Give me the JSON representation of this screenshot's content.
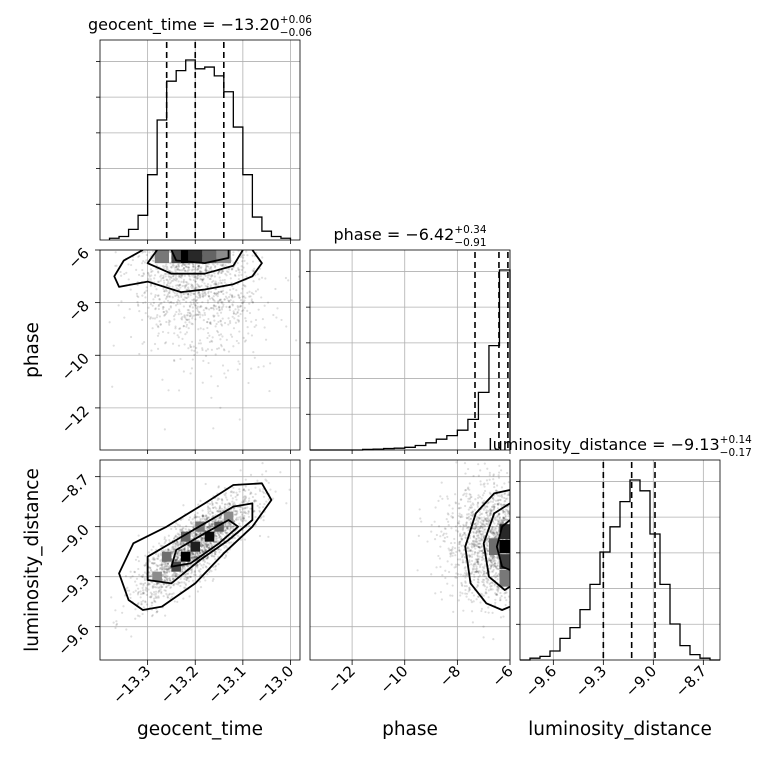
{
  "chart_data": {
    "type": "corner",
    "grid": true,
    "parameters": [
      {
        "name": "geocent_time",
        "label": "geocent_time",
        "range": [
          -13.4,
          -12.98
        ],
        "ticks": [
          -13.3,
          -13.2,
          -13.1,
          -13.0
        ],
        "tick_labels": [
          "−13.3",
          "−13.2",
          "−13.1",
          "−13.0"
        ],
        "median": -13.2,
        "minus": 0.06,
        "plus": 0.06,
        "title": {
          "name": "geocent_time",
          "value": "−13.20",
          "plus": "+0.06",
          "minus": "−0.06"
        },
        "quantiles": [
          -13.26,
          -13.2,
          -13.14
        ],
        "hist": {
          "edges": [
            -13.38,
            -13.36,
            -13.34,
            -13.32,
            -13.3,
            -13.28,
            -13.26,
            -13.24,
            -13.22,
            -13.2,
            -13.18,
            -13.16,
            -13.14,
            -13.12,
            -13.1,
            -13.08,
            -13.06,
            -13.04,
            -13.02,
            -13.0
          ],
          "counts": [
            1,
            2,
            6,
            14,
            37,
            68,
            90,
            96,
            102,
            97,
            98,
            93,
            84,
            64,
            37,
            13,
            5,
            2,
            1
          ]
        }
      },
      {
        "name": "phase",
        "label": "phase",
        "range": [
          -13.6,
          -6.0
        ],
        "ticks": [
          -12,
          -10,
          -8,
          -6
        ],
        "tick_labels": [
          "−12",
          "−10",
          "−8",
          "−6"
        ],
        "median": -6.42,
        "minus": 0.91,
        "plus": 0.34,
        "title": {
          "name": "phase",
          "value": "−6.42",
          "plus": "+0.34",
          "minus": "−0.91"
        },
        "quantiles": [
          -7.33,
          -6.42,
          -6.08
        ],
        "hist": {
          "edges": [
            -13.6,
            -13.2,
            -12.8,
            -12.4,
            -12.0,
            -11.6,
            -11.2,
            -10.8,
            -10.4,
            -10.0,
            -9.6,
            -9.2,
            -8.8,
            -8.4,
            -8.0,
            -7.6,
            -7.2,
            -6.8,
            -6.4,
            -6.0
          ],
          "counts": [
            0,
            0,
            0,
            0,
            0,
            0.3,
            0.5,
            0.8,
            1,
            1.5,
            2.5,
            4,
            6,
            8,
            11,
            17,
            32,
            58,
            100
          ]
        }
      },
      {
        "name": "luminosity_distance",
        "label": "luminosity_distance",
        "range": [
          -9.8,
          -8.6
        ],
        "ticks": [
          -9.6,
          -9.3,
          -9.0,
          -8.7
        ],
        "tick_labels": [
          "−9.6",
          "−9.3",
          "−9.0",
          "−8.7"
        ],
        "median": -9.13,
        "minus": 0.17,
        "plus": 0.14,
        "title": {
          "name": "luminosity_distance",
          "value": "−9.13",
          "plus": "+0.14",
          "minus": "−0.17"
        },
        "quantiles": [
          -9.3,
          -9.13,
          -8.99
        ],
        "hist": {
          "edges": [
            -9.8,
            -9.74,
            -9.68,
            -9.62,
            -9.56,
            -9.5,
            -9.44,
            -9.38,
            -9.32,
            -9.26,
            -9.2,
            -9.14,
            -9.08,
            -9.02,
            -8.96,
            -8.9,
            -8.84,
            -8.78,
            -8.72,
            -8.66,
            -8.6
          ],
          "counts": [
            0,
            1,
            2,
            5,
            12,
            18,
            28,
            42,
            60,
            74,
            88,
            100,
            94,
            70,
            42,
            20,
            8,
            3,
            1,
            0
          ]
        }
      }
    ],
    "pairs": [
      {
        "x": "geocent_time",
        "y": "phase",
        "mean": [
          -13.21,
          -7.0
        ],
        "sd": [
          0.06,
          1.0
        ],
        "corr": 0.0,
        "scatter_points": 1200,
        "density_squares": [
          {
            "x": -13.22,
            "y": -6.25,
            "w": 0.03,
            "h": 0.5,
            "shade": 0.0
          },
          {
            "x": -13.2,
            "y": -6.25,
            "w": 0.03,
            "h": 0.5,
            "shade": 0.2
          },
          {
            "x": -13.24,
            "y": -6.25,
            "w": 0.02,
            "h": 0.5,
            "shade": 0.35
          },
          {
            "x": -13.17,
            "y": -6.25,
            "w": 0.03,
            "h": 0.5,
            "shade": 0.5
          },
          {
            "x": -13.27,
            "y": -6.25,
            "w": 0.03,
            "h": 0.5,
            "shade": 0.6
          },
          {
            "x": -13.14,
            "y": -6.25,
            "w": 0.03,
            "h": 0.5,
            "shade": 0.7
          }
        ],
        "contours": [
          [
            [
              -13.31,
              -6.0
            ],
            [
              -13.35,
              -6.4
            ],
            [
              -13.37,
              -7.0
            ],
            [
              -13.36,
              -7.4
            ],
            [
              -13.3,
              -7.2
            ],
            [
              -13.23,
              -7.6
            ],
            [
              -13.18,
              -7.5
            ],
            [
              -13.12,
              -7.3
            ],
            [
              -13.08,
              -7.0
            ],
            [
              -13.06,
              -6.5
            ],
            [
              -13.08,
              -6.0
            ]
          ],
          [
            [
              -13.28,
              -6.0
            ],
            [
              -13.3,
              -6.5
            ],
            [
              -13.25,
              -6.9
            ],
            [
              -13.18,
              -6.9
            ],
            [
              -13.12,
              -6.6
            ],
            [
              -13.1,
              -6.0
            ]
          ],
          [
            [
              -13.25,
              -6.0
            ],
            [
              -13.24,
              -6.4
            ],
            [
              -13.18,
              -6.5
            ],
            [
              -13.13,
              -6.3
            ],
            [
              -13.13,
              -6.0
            ]
          ]
        ]
      },
      {
        "x": "geocent_time",
        "y": "luminosity_distance",
        "mean": [
          -13.2,
          -9.12
        ],
        "sd": [
          0.06,
          0.16
        ],
        "corr": 0.82,
        "scatter_points": 2000,
        "density_squares": [
          {
            "x": -13.22,
            "y": -9.18,
            "w": 0.02,
            "h": 0.06,
            "shade": 0.0
          },
          {
            "x": -13.2,
            "y": -9.12,
            "w": 0.02,
            "h": 0.06,
            "shade": 0.15
          },
          {
            "x": -13.17,
            "y": -9.06,
            "w": 0.02,
            "h": 0.06,
            "shade": 0.05
          },
          {
            "x": -13.24,
            "y": -9.24,
            "w": 0.02,
            "h": 0.06,
            "shade": 0.35
          },
          {
            "x": -13.15,
            "y": -9.0,
            "w": 0.02,
            "h": 0.06,
            "shade": 0.45
          },
          {
            "x": -13.26,
            "y": -9.18,
            "w": 0.02,
            "h": 0.06,
            "shade": 0.55
          },
          {
            "x": -13.19,
            "y": -9.0,
            "w": 0.02,
            "h": 0.06,
            "shade": 0.6
          },
          {
            "x": -13.22,
            "y": -9.06,
            "w": 0.02,
            "h": 0.06,
            "shade": 0.5
          },
          {
            "x": -13.13,
            "y": -8.94,
            "w": 0.02,
            "h": 0.06,
            "shade": 0.7
          },
          {
            "x": -13.28,
            "y": -9.3,
            "w": 0.02,
            "h": 0.06,
            "shade": 0.7
          }
        ],
        "contours": [
          [
            [
              -13.34,
              -9.44
            ],
            [
              -13.36,
              -9.28
            ],
            [
              -13.33,
              -9.1
            ],
            [
              -13.26,
              -9.0
            ],
            [
              -13.18,
              -8.86
            ],
            [
              -13.12,
              -8.75
            ],
            [
              -13.06,
              -8.74
            ],
            [
              -13.04,
              -8.84
            ],
            [
              -13.08,
              -9.0
            ],
            [
              -13.14,
              -9.16
            ],
            [
              -13.2,
              -9.34
            ],
            [
              -13.27,
              -9.48
            ],
            [
              -13.31,
              -9.5
            ]
          ],
          [
            [
              -13.3,
              -9.32
            ],
            [
              -13.3,
              -9.18
            ],
            [
              -13.24,
              -9.08
            ],
            [
              -13.18,
              -8.98
            ],
            [
              -13.12,
              -8.88
            ],
            [
              -13.08,
              -8.86
            ],
            [
              -13.08,
              -8.96
            ],
            [
              -13.13,
              -9.08
            ],
            [
              -13.19,
              -9.2
            ],
            [
              -13.25,
              -9.34
            ]
          ],
          [
            [
              -13.25,
              -9.24
            ],
            [
              -13.24,
              -9.14
            ],
            [
              -13.18,
              -9.04
            ],
            [
              -13.13,
              -8.96
            ],
            [
              -13.11,
              -9.0
            ],
            [
              -13.15,
              -9.1
            ],
            [
              -13.21,
              -9.22
            ]
          ]
        ]
      },
      {
        "x": "phase",
        "y": "luminosity_distance",
        "mean": [
          -6.7,
          -9.1
        ],
        "sd": [
          0.9,
          0.17
        ],
        "corr": 0.0,
        "scatter_points": 1400,
        "density_squares": [
          {
            "x": -6.2,
            "y": -9.12,
            "w": 0.4,
            "h": 0.08,
            "shade": 0.0
          },
          {
            "x": -6.2,
            "y": -9.03,
            "w": 0.4,
            "h": 0.09,
            "shade": 0.2
          },
          {
            "x": -6.2,
            "y": -9.21,
            "w": 0.4,
            "h": 0.09,
            "shade": 0.3
          },
          {
            "x": -6.6,
            "y": -9.12,
            "w": 0.4,
            "h": 0.1,
            "shade": 0.55
          },
          {
            "x": -6.2,
            "y": -9.31,
            "w": 0.4,
            "h": 0.1,
            "shade": 0.6
          }
        ],
        "contours": [
          [
            [
              -6.0,
              -8.78
            ],
            [
              -6.6,
              -8.8
            ],
            [
              -7.3,
              -8.92
            ],
            [
              -7.7,
              -9.12
            ],
            [
              -7.5,
              -9.34
            ],
            [
              -6.9,
              -9.46
            ],
            [
              -6.3,
              -9.5
            ],
            [
              -6.0,
              -9.48
            ]
          ],
          [
            [
              -6.0,
              -8.86
            ],
            [
              -6.6,
              -8.92
            ],
            [
              -7.0,
              -9.1
            ],
            [
              -6.8,
              -9.3
            ],
            [
              -6.2,
              -9.38
            ],
            [
              -6.0,
              -9.36
            ]
          ],
          [
            [
              -6.0,
              -8.96
            ],
            [
              -6.3,
              -9.0
            ],
            [
              -6.5,
              -9.12
            ],
            [
              -6.3,
              -9.24
            ],
            [
              -6.0,
              -9.26
            ]
          ]
        ]
      }
    ]
  }
}
